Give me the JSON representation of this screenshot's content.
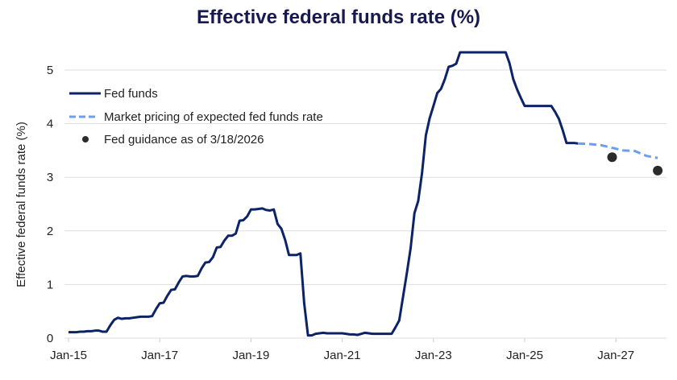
{
  "chart_data": {
    "type": "line",
    "title": "Effective federal funds rate (%)",
    "xlabel": "",
    "ylabel": "Effective federal funds rate (%)",
    "ylim": [
      0,
      5.4
    ],
    "yticks": [
      "0",
      "1",
      "2",
      "3",
      "4",
      "5"
    ],
    "xticks": [
      {
        "label": "Jan-15",
        "date": "2015-01"
      },
      {
        "label": "Jan-17",
        "date": "2017-01"
      },
      {
        "label": "Jan-19",
        "date": "2019-01"
      },
      {
        "label": "Jan-21",
        "date": "2021-01"
      },
      {
        "label": "Jan-23",
        "date": "2023-01"
      },
      {
        "label": "Jan-25",
        "date": "2025-01"
      },
      {
        "label": "Jan-27",
        "date": "2027-01"
      }
    ],
    "grid": "horizontal",
    "legend_position": "top-left",
    "colors": {
      "fed_funds": "#0c2368",
      "market": "#6d9eeb",
      "guidance": "#2b2b2b",
      "grid": "#dddddd"
    },
    "series": [
      {
        "name": "Fed funds",
        "style": "solid",
        "start": "2015-01",
        "monthly_values": [
          0.11,
          0.11,
          0.11,
          0.12,
          0.12,
          0.13,
          0.13,
          0.14,
          0.14,
          0.12,
          0.12,
          0.24,
          0.34,
          0.38,
          0.36,
          0.37,
          0.37,
          0.38,
          0.39,
          0.4,
          0.4,
          0.4,
          0.41,
          0.54,
          0.65,
          0.66,
          0.79,
          0.9,
          0.91,
          1.04,
          1.15,
          1.16,
          1.15,
          1.15,
          1.16,
          1.3,
          1.41,
          1.42,
          1.51,
          1.69,
          1.7,
          1.82,
          1.91,
          1.91,
          1.95,
          2.19,
          2.2,
          2.27,
          2.4,
          2.4,
          2.41,
          2.42,
          2.39,
          2.38,
          2.4,
          2.13,
          2.04,
          1.83,
          1.55,
          1.55,
          1.55,
          1.58,
          0.65,
          0.05,
          0.05,
          0.08,
          0.09,
          0.1,
          0.09,
          0.09,
          0.09,
          0.09,
          0.09,
          0.08,
          0.07,
          0.07,
          0.06,
          0.08,
          0.1,
          0.09,
          0.08,
          0.08,
          0.08,
          0.08,
          0.08,
          0.08,
          0.2,
          0.33,
          0.77,
          1.21,
          1.68,
          2.33,
          2.56,
          3.08,
          3.78,
          4.1,
          4.33,
          4.57,
          4.65,
          4.83,
          5.06,
          5.08,
          5.12,
          5.33,
          5.33,
          5.33,
          5.33,
          5.33,
          5.33,
          5.33,
          5.33,
          5.33,
          5.33,
          5.33,
          5.33,
          5.33,
          5.13,
          4.83,
          4.64,
          4.48,
          4.33,
          4.33,
          4.33,
          4.33,
          4.33,
          4.33,
          4.33,
          4.33,
          4.22,
          4.09,
          3.88,
          3.64,
          3.64,
          3.64,
          3.63
        ]
      },
      {
        "name": "Market pricing of expected fed funds rate",
        "style": "dashed",
        "points": [
          {
            "x": "2026-03",
            "y": 3.63
          },
          {
            "x": "2026-06",
            "y": 3.62
          },
          {
            "x": "2026-09",
            "y": 3.6
          },
          {
            "x": "2026-12",
            "y": 3.55
          },
          {
            "x": "2027-03",
            "y": 3.5
          },
          {
            "x": "2027-06",
            "y": 3.49
          },
          {
            "x": "2027-09",
            "y": 3.4
          },
          {
            "x": "2027-12",
            "y": 3.36
          }
        ]
      },
      {
        "name": "Fed guidance as of 3/18/2026",
        "style": "dots",
        "points": [
          {
            "x": "2026-12",
            "y": 3.375
          },
          {
            "x": "2027-12",
            "y": 3.125
          }
        ]
      }
    ]
  }
}
